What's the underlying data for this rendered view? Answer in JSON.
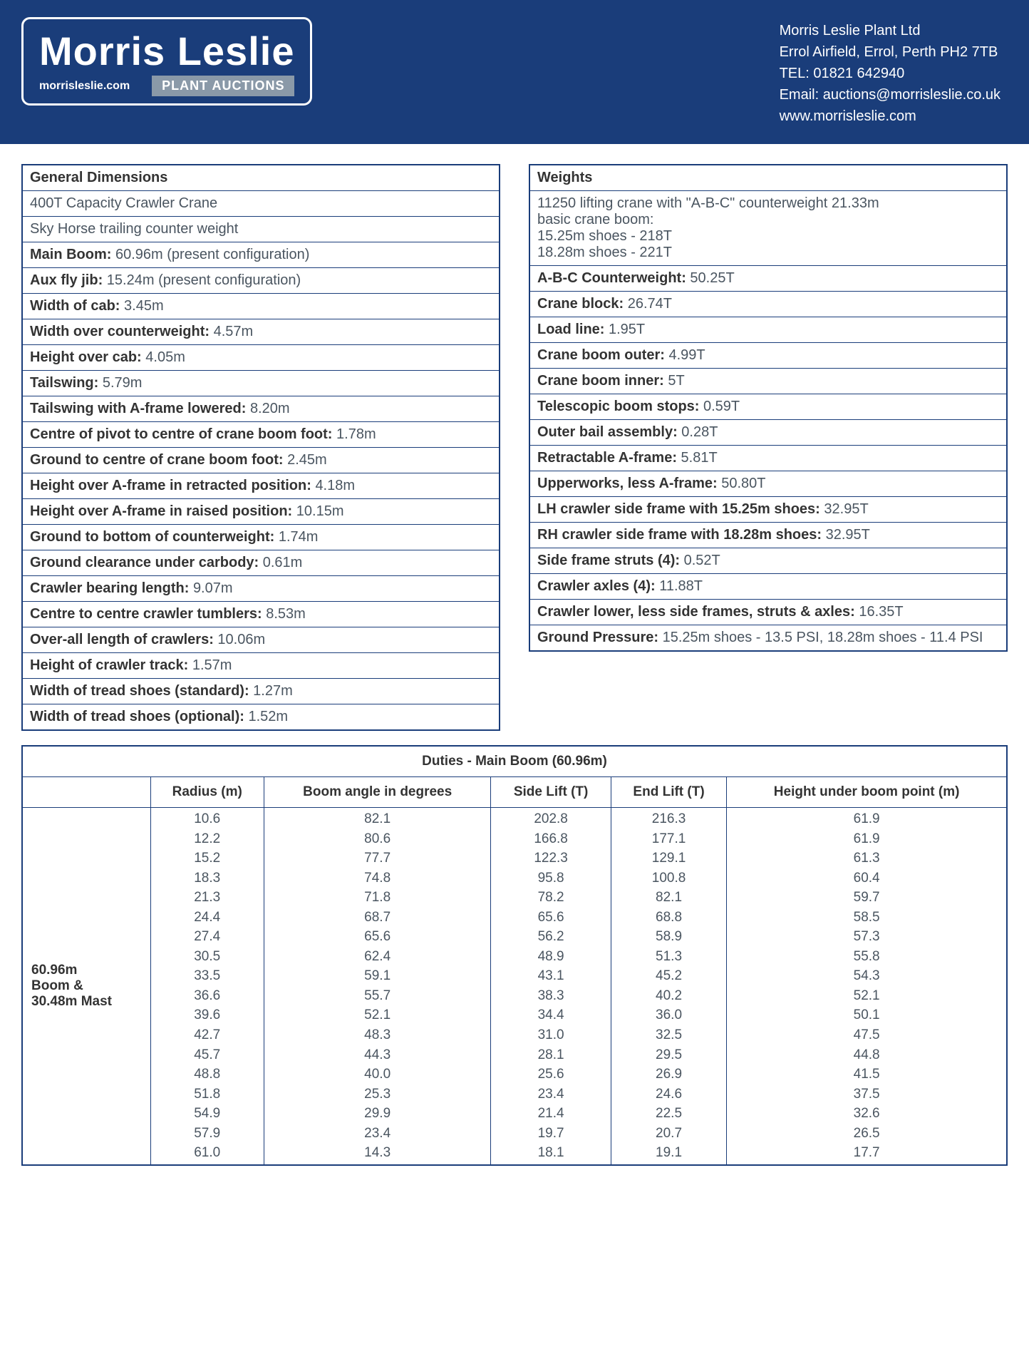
{
  "header": {
    "logo_text": "Morris Leslie",
    "logo_url": "morrisleslie.com",
    "plant_auctions": "PLANT AUCTIONS",
    "contact": {
      "company": "Morris Leslie Plant Ltd",
      "address": "Errol Airfield, Errol, Perth PH2 7TB",
      "tel": "TEL: 01821 642940",
      "email": "Email: auctions@morrisleslie.co.uk",
      "web": "www.morrisleslie.com"
    },
    "bg_color": "#1a3d7a"
  },
  "general": {
    "title": "General Dimensions",
    "rows": [
      {
        "label": "",
        "value": "400T Capacity Crawler Crane"
      },
      {
        "label": "",
        "value": "Sky Horse trailing counter weight"
      },
      {
        "label": "Main Boom:",
        "value": "60.96m (present configuration)"
      },
      {
        "label": "Aux fly jib:",
        "value": "15.24m (present configuration)"
      },
      {
        "label": "Width of cab:",
        "value": "3.45m"
      },
      {
        "label": "Width over counterweight:",
        "value": "4.57m"
      },
      {
        "label": "Height over cab:",
        "value": "4.05m"
      },
      {
        "label": "Tailswing:",
        "value": "5.79m"
      },
      {
        "label": "Tailswing with A-frame lowered:",
        "value": "8.20m"
      },
      {
        "label": "Centre of pivot to centre of crane boom foot:",
        "value": "1.78m"
      },
      {
        "label": "Ground to centre of crane boom foot:",
        "value": "2.45m"
      },
      {
        "label": "Height over A-frame in retracted position:",
        "value": "4.18m"
      },
      {
        "label": "Height over A-frame in raised position:",
        "value": "10.15m"
      },
      {
        "label": "Ground to bottom of counterweight:",
        "value": "1.74m"
      },
      {
        "label": "Ground clearance under carbody:",
        "value": "0.61m"
      },
      {
        "label": "Crawler bearing length:",
        "value": "9.07m"
      },
      {
        "label": "Centre to centre crawler tumblers:",
        "value": "8.53m"
      },
      {
        "label": "Over-all length of crawlers:",
        "value": "10.06m"
      },
      {
        "label": "Height of crawler track:",
        "value": "1.57m"
      },
      {
        "label": "Width of tread shoes (standard):",
        "value": "1.27m"
      },
      {
        "label": "Width of tread shoes (optional):",
        "value": "1.52m"
      }
    ]
  },
  "weights": {
    "title": "Weights",
    "intro": {
      "l1": "11250 lifting crane with \"A-B-C\" counterweight 21.33m",
      "l2": "basic crane boom:",
      "l3": "15.25m shoes - 218T",
      "l4": "18.28m shoes - 221T"
    },
    "rows": [
      {
        "label": "A-B-C Counterweight:",
        "value": "50.25T"
      },
      {
        "label": "Crane block:",
        "value": "26.74T"
      },
      {
        "label": "Load line:",
        "value": "1.95T"
      },
      {
        "label": "Crane boom outer:",
        "value": "4.99T"
      },
      {
        "label": "Crane boom inner:",
        "value": "5T"
      },
      {
        "label": "Telescopic boom stops:",
        "value": "0.59T"
      },
      {
        "label": "Outer bail assembly:",
        "value": "0.28T"
      },
      {
        "label": "Retractable A-frame:",
        "value": "5.81T"
      },
      {
        "label": "Upperworks, less A-frame:",
        "value": "50.80T"
      },
      {
        "label": "LH crawler side frame with 15.25m shoes:",
        "value": "32.95T"
      },
      {
        "label": "RH crawler side frame with 18.28m shoes:",
        "value": "32.95T"
      },
      {
        "label": "Side frame struts (4):",
        "value": "0.52T"
      },
      {
        "label": "Crawler axles (4):",
        "value": "11.88T"
      },
      {
        "label": "Crawler lower, less side frames, struts & axles:",
        "value": "16.35T"
      },
      {
        "label": "Ground Pressure:",
        "value": "15.25m shoes - 13.5 PSI, 18.28m shoes - 11.4 PSI"
      }
    ]
  },
  "duties": {
    "title": "Duties - Main Boom (60.96m)",
    "rowhead_l1": "60.96m",
    "rowhead_l2": "Boom &",
    "rowhead_l3": "30.48m Mast",
    "columns": [
      "Radius (m)",
      "Boom angle in degrees",
      "Side Lift (T)",
      "End Lift (T)",
      "Height under boom point (m)"
    ],
    "rows": [
      [
        "10.6",
        "82.1",
        "202.8",
        "216.3",
        "61.9"
      ],
      [
        "12.2",
        "80.6",
        "166.8",
        "177.1",
        "61.9"
      ],
      [
        "15.2",
        "77.7",
        "122.3",
        "129.1",
        "61.3"
      ],
      [
        "18.3",
        "74.8",
        "95.8",
        "100.8",
        "60.4"
      ],
      [
        "21.3",
        "71.8",
        "78.2",
        "82.1",
        "59.7"
      ],
      [
        "24.4",
        "68.7",
        "65.6",
        "68.8",
        "58.5"
      ],
      [
        "27.4",
        "65.6",
        "56.2",
        "58.9",
        "57.3"
      ],
      [
        "30.5",
        "62.4",
        "48.9",
        "51.3",
        "55.8"
      ],
      [
        "33.5",
        "59.1",
        "43.1",
        "45.2",
        "54.3"
      ],
      [
        "36.6",
        "55.7",
        "38.3",
        "40.2",
        "52.1"
      ],
      [
        "39.6",
        "52.1",
        "34.4",
        "36.0",
        "50.1"
      ],
      [
        "42.7",
        "48.3",
        "31.0",
        "32.5",
        "47.5"
      ],
      [
        "45.7",
        "44.3",
        "28.1",
        "29.5",
        "44.8"
      ],
      [
        "48.8",
        "40.0",
        "25.6",
        "26.9",
        "41.5"
      ],
      [
        "51.8",
        "25.3",
        "23.4",
        "24.6",
        "37.5"
      ],
      [
        "54.9",
        "29.9",
        "21.4",
        "22.5",
        "32.6"
      ],
      [
        "57.9",
        "23.4",
        "19.7",
        "20.7",
        "26.5"
      ],
      [
        "61.0",
        "14.3",
        "18.1",
        "19.1",
        "17.7"
      ]
    ]
  }
}
